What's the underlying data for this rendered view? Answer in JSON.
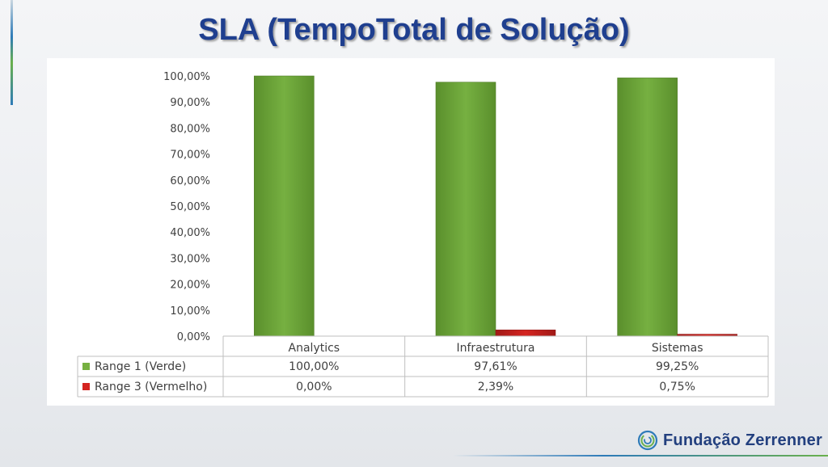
{
  "slide": {
    "title": "SLA (TempoTotal de Solução)",
    "logo_text": "Fundação Zerrenner"
  },
  "colors": {
    "green": "#76b041",
    "red": "#d42420",
    "title": "#1f3f8f"
  },
  "chart_data": {
    "type": "bar",
    "title": "",
    "xlabel": "",
    "ylabel": "",
    "categories": [
      "Analytics",
      "Infraestrutura",
      "Sistemas"
    ],
    "series": [
      {
        "name": "Range 1 (Verde)",
        "color": "#76b041",
        "values": [
          100.0,
          97.61,
          99.25
        ],
        "labels": [
          "100,00%",
          "97,61%",
          "99,25%"
        ]
      },
      {
        "name": "Range 3 (Vermelho)",
        "color": "#d42420",
        "values": [
          0.0,
          2.39,
          0.75
        ],
        "labels": [
          "0,00%",
          "2,39%",
          "0,75%"
        ]
      }
    ],
    "ylim": [
      0,
      100
    ],
    "yticks": [
      0,
      10,
      20,
      30,
      40,
      50,
      60,
      70,
      80,
      90,
      100
    ],
    "ytick_labels": [
      "0,00%",
      "10,00%",
      "20,00%",
      "30,00%",
      "40,00%",
      "50,00%",
      "60,00%",
      "70,00%",
      "80,00%",
      "90,00%",
      "100,00%"
    ],
    "grid": false,
    "legend": "data-table-bottom"
  }
}
